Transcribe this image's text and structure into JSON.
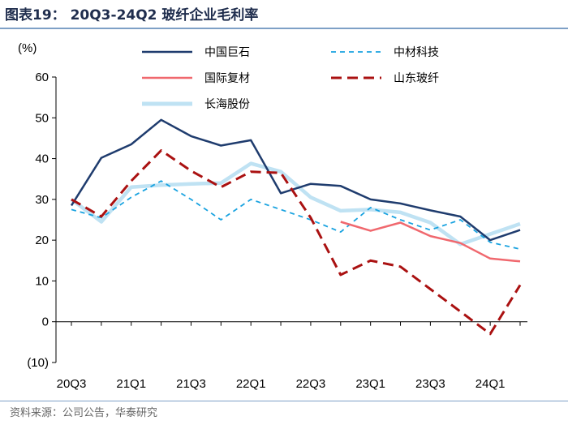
{
  "header": {
    "title": "图表19： 20Q3-24Q2 玻纤企业毛利率"
  },
  "footer": {
    "source": "资料来源：公司公告，华泰研究"
  },
  "chart_data": {
    "type": "line",
    "title": "20Q3-24Q2 玻纤企业毛利率",
    "ylabel": "(%)",
    "ylim": [
      -10,
      60
    ],
    "yticks": [
      60,
      50,
      40,
      30,
      20,
      10,
      0,
      -10
    ],
    "ytick_labels": [
      "60",
      "50",
      "40",
      "30",
      "20",
      "10",
      "0",
      "(10)"
    ],
    "categories": [
      "20Q3",
      "20Q4",
      "21Q1",
      "21Q2",
      "21Q3",
      "21Q4",
      "22Q1",
      "22Q2",
      "22Q3",
      "22Q4",
      "23Q1",
      "23Q2",
      "23Q3",
      "23Q4",
      "24Q1",
      "24Q2"
    ],
    "xtick_labels": [
      "20Q3",
      "21Q1",
      "21Q3",
      "22Q1",
      "22Q3",
      "23Q1",
      "23Q3",
      "24Q1"
    ],
    "series": [
      {
        "name": "中国巨石",
        "color": "#1f3c6e",
        "dash": "solid",
        "values": [
          28.5,
          40.2,
          43.5,
          49.5,
          45.5,
          43.2,
          44.5,
          31.5,
          33.8,
          33.3,
          30.0,
          29.0,
          27.3,
          25.8,
          20.0,
          22.5
        ]
      },
      {
        "name": "中材科技",
        "color": "#1aa3e0",
        "dash": "short",
        "values": [
          27.5,
          25.5,
          30.5,
          34.5,
          30.0,
          25.0,
          30.0,
          27.5,
          25.0,
          22.0,
          28.0,
          25.0,
          22.5,
          25.0,
          19.5,
          17.8
        ]
      },
      {
        "name": "国际复材",
        "color": "#f0686e",
        "dash": "solid",
        "values": [
          null,
          null,
          null,
          null,
          null,
          null,
          null,
          null,
          null,
          24.5,
          22.3,
          24.3,
          21.0,
          19.3,
          15.5,
          14.8
        ]
      },
      {
        "name": "山东玻纤",
        "color": "#aa1111",
        "dash": "long",
        "values": [
          30.0,
          25.8,
          34.5,
          42.0,
          37.0,
          33.0,
          36.8,
          36.5,
          25.5,
          11.5,
          15.0,
          13.5,
          8.0,
          2.5,
          -3.0,
          9.0
        ]
      },
      {
        "name": "长海股份",
        "color": "#bfe2f3",
        "dash": "solid",
        "values": [
          30.0,
          24.5,
          33.0,
          33.5,
          33.8,
          34.0,
          38.8,
          36.8,
          30.5,
          27.2,
          27.5,
          26.8,
          24.3,
          19.0,
          21.5,
          24.0
        ]
      }
    ],
    "legend": {
      "placement": "top",
      "columns": 2
    }
  }
}
